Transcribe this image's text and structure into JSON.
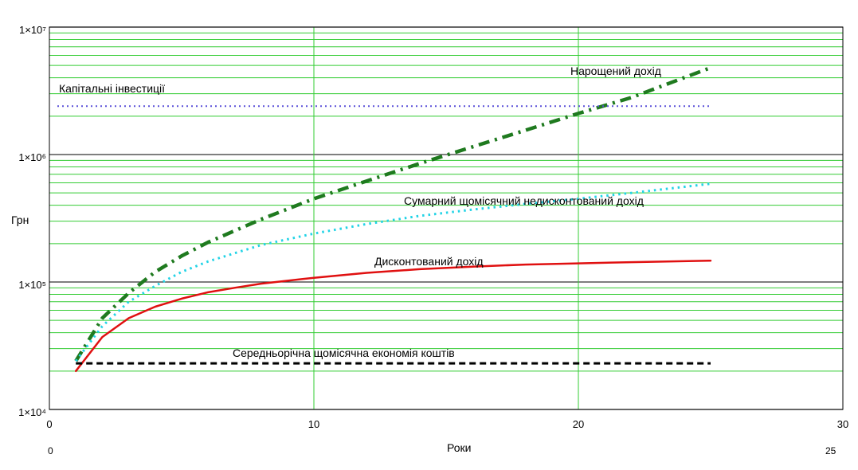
{
  "chart_data": {
    "type": "line",
    "xlabel": "Роки",
    "ylabel": "Грн",
    "xlim": [
      0,
      30
    ],
    "ylim": [
      10000,
      10000000
    ],
    "y_scale": "log",
    "grid": true,
    "x_ticks": [
      {
        "value": 0,
        "label": "0"
      },
      {
        "value": 10,
        "label": "10"
      },
      {
        "value": 20,
        "label": "20"
      },
      {
        "value": 30,
        "label": "30"
      }
    ],
    "y_ticks": [
      {
        "value": 10000,
        "label": "1×10⁴"
      },
      {
        "value": 100000,
        "label": "1×10⁵"
      },
      {
        "value": 1000000,
        "label": "1×10⁶"
      },
      {
        "value": 10000000,
        "label": "1×10⁷"
      }
    ],
    "range_markers": {
      "left": "0",
      "right": "25"
    },
    "series": [
      {
        "name": "Нарощений дохід",
        "style": "dashdot",
        "color": "#1f7a1f",
        "x": [
          1,
          2,
          3,
          4,
          5,
          6,
          8,
          10,
          12,
          14,
          16,
          18,
          20,
          22,
          25
        ],
        "y": [
          24000,
          52000,
          82000,
          120000,
          160000,
          205000,
          310000,
          450000,
          620000,
          850000,
          1150000,
          1550000,
          2100000,
          2800000,
          4800000
        ]
      },
      {
        "name": "Сумарний щомісячний недисконтований дохід",
        "style": "dotted",
        "color": "#22d3e6",
        "x": [
          1,
          2,
          3,
          4,
          5,
          6,
          8,
          10,
          12,
          14,
          16,
          18,
          20,
          22,
          25
        ],
        "y": [
          24000,
          45000,
          70000,
          93000,
          120000,
          145000,
          195000,
          240000,
          285000,
          330000,
          370000,
          410000,
          450000,
          500000,
          590000
        ]
      },
      {
        "name": "Дисконтований дохід",
        "style": "solid",
        "color": "#e01010",
        "x": [
          1,
          2,
          3,
          4,
          5,
          6,
          7,
          8,
          10,
          12,
          14,
          16,
          18,
          20,
          22,
          25
        ],
        "y": [
          20000,
          37000,
          52000,
          64000,
          74000,
          83000,
          90000,
          97000,
          108000,
          118000,
          126000,
          132000,
          137000,
          140000,
          143000,
          147000
        ]
      },
      {
        "name": "Капітальні інвестиції",
        "style": "dotted-fine",
        "color": "#5a50d8",
        "x": [
          0.3,
          25
        ],
        "y": [
          2400000,
          2400000
        ]
      },
      {
        "name": "Середньорічна щомісячна економія коштів",
        "style": "dashed",
        "color": "#000000",
        "x": [
          1,
          25
        ],
        "y": [
          23000,
          23000
        ]
      }
    ]
  }
}
